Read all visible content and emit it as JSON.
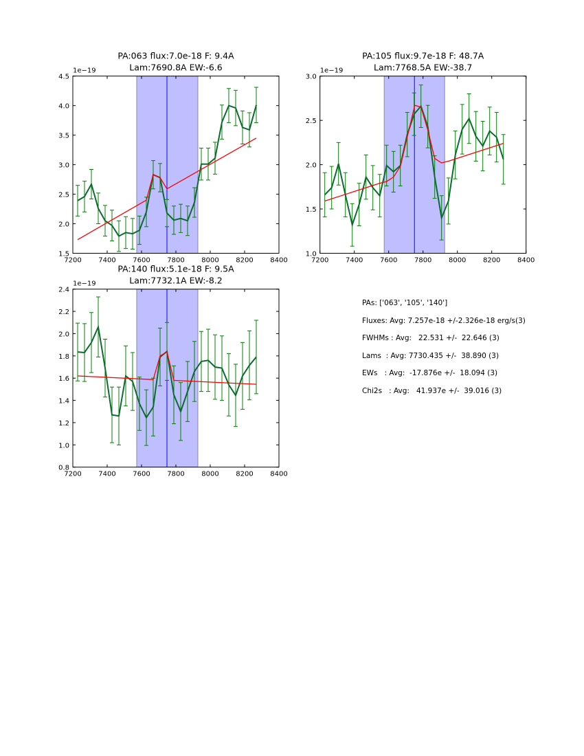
{
  "chart_data": [
    {
      "type": "line",
      "title": [
        "PA:063 flux:7.0e-18 F: 9.4A",
        "Lam:7690.8A EW:-6.6"
      ],
      "xlabel": "",
      "ylabel": "",
      "y_offset_label": "1e−19",
      "xlim": [
        7200,
        8400
      ],
      "ylim": [
        1.5,
        4.5
      ],
      "xticks": [
        7200,
        7400,
        7600,
        7800,
        8000,
        8200,
        8400
      ],
      "xtick_labels": [
        "7200",
        "7400",
        "7600",
        "7800",
        "8000",
        "8200",
        "8400"
      ],
      "yticks": [
        1.5,
        2.0,
        2.5,
        3.0,
        3.5,
        4.0,
        4.5
      ],
      "ytick_labels": [
        "1.5",
        "2.0",
        "2.5",
        "3.0",
        "3.5",
        "4.0",
        "4.5"
      ],
      "band": [
        7572,
        7928
      ],
      "center_line": 7748,
      "x": [
        7228,
        7268,
        7308,
        7348,
        7388,
        7428,
        7468,
        7508,
        7548,
        7588,
        7628,
        7668,
        7708,
        7748,
        7788,
        7828,
        7868,
        7908,
        7948,
        7988,
        8028,
        8068,
        8108,
        8148,
        8188,
        8228,
        8268
      ],
      "series": [
        {
          "name": "data",
          "values": [
            2.39,
            2.46,
            2.67,
            2.26,
            2.05,
            1.97,
            1.79,
            1.85,
            1.83,
            1.89,
            2.2,
            2.83,
            2.78,
            2.18,
            2.06,
            2.09,
            2.05,
            2.36,
            3.01,
            3.01,
            3.11,
            3.72,
            4.0,
            3.96,
            3.63,
            3.59,
            4.01
          ],
          "errors": [
            0.26,
            0.26,
            0.25,
            0.26,
            0.26,
            0.26,
            0.26,
            0.27,
            0.26,
            0.24,
            0.25,
            0.24,
            0.24,
            0.23,
            0.24,
            0.24,
            0.25,
            0.25,
            0.27,
            0.27,
            0.27,
            0.29,
            0.29,
            0.3,
            0.28,
            0.29,
            0.3
          ]
        },
        {
          "name": "fit",
          "x": [
            7228,
            7628,
            7668,
            7708,
            7748,
            8268
          ],
          "values": [
            1.73,
            2.4,
            2.83,
            2.78,
            2.59,
            3.45
          ]
        }
      ]
    },
    {
      "type": "line",
      "title": [
        "PA:105 flux:9.7e-18 F: 48.7A",
        "Lam:7768.5A EW:-38.7"
      ],
      "xlabel": "",
      "ylabel": "",
      "y_offset_label": "1e−19",
      "xlim": [
        7200,
        8400
      ],
      "ylim": [
        1.0,
        3.0
      ],
      "xticks": [
        7200,
        7400,
        7600,
        7800,
        8000,
        8200,
        8400
      ],
      "xtick_labels": [
        "7200",
        "7400",
        "7600",
        "7800",
        "8000",
        "8200",
        "8400"
      ],
      "yticks": [
        1.0,
        1.5,
        2.0,
        2.5,
        3.0
      ],
      "ytick_labels": [
        "1.0",
        "1.5",
        "2.0",
        "2.5",
        "3.0"
      ],
      "band": [
        7574,
        7926
      ],
      "center_line": 7750,
      "x": [
        7228,
        7268,
        7308,
        7348,
        7388,
        7428,
        7468,
        7508,
        7548,
        7588,
        7628,
        7668,
        7708,
        7748,
        7788,
        7828,
        7868,
        7908,
        7948,
        7988,
        8028,
        8068,
        8108,
        8148,
        8188,
        8228,
        8268
      ],
      "series": [
        {
          "name": "data",
          "values": [
            1.66,
            1.74,
            2.01,
            1.66,
            1.32,
            1.55,
            1.86,
            1.74,
            1.65,
            1.99,
            1.92,
            1.99,
            2.34,
            2.57,
            2.66,
            2.43,
            1.86,
            1.4,
            1.59,
            2.11,
            2.4,
            2.52,
            2.32,
            2.21,
            2.38,
            2.31,
            2.06
          ],
          "errors": [
            0.25,
            0.24,
            0.24,
            0.25,
            0.24,
            0.24,
            0.25,
            0.25,
            0.24,
            0.23,
            0.23,
            0.23,
            0.25,
            0.24,
            0.24,
            0.24,
            0.24,
            0.25,
            0.26,
            0.27,
            0.28,
            0.28,
            0.28,
            0.28,
            0.27,
            0.28,
            0.28
          ]
        },
        {
          "name": "fit",
          "x": [
            7228,
            7548,
            7588,
            7628,
            7668,
            7708,
            7752,
            7788,
            7828,
            7868,
            7908,
            7948,
            8268
          ],
          "values": [
            1.59,
            1.79,
            1.81,
            1.86,
            1.98,
            2.31,
            2.67,
            2.65,
            2.39,
            2.07,
            2.02,
            2.04,
            2.24
          ]
        }
      ]
    },
    {
      "type": "line",
      "title": [
        "PA:140 flux:5.1e-18 F: 9.5A",
        "Lam:7732.1A EW:-8.2"
      ],
      "xlabel": "",
      "ylabel": "",
      "y_offset_label": "1e−19",
      "xlim": [
        7200,
        8400
      ],
      "ylim": [
        0.8,
        2.4
      ],
      "xticks": [
        7200,
        7400,
        7600,
        7800,
        8000,
        8200,
        8400
      ],
      "xtick_labels": [
        "7200",
        "7400",
        "7600",
        "7800",
        "8000",
        "8200",
        "8400"
      ],
      "yticks": [
        0.8,
        1.0,
        1.2,
        1.4,
        1.6,
        1.8,
        2.0,
        2.2,
        2.4
      ],
      "ytick_labels": [
        "0.8",
        "1.0",
        "1.2",
        "1.4",
        "1.6",
        "1.8",
        "2.0",
        "2.2",
        "2.4"
      ],
      "band": [
        7572,
        7928
      ],
      "center_line": 7748,
      "x": [
        7228,
        7268,
        7308,
        7348,
        7388,
        7428,
        7468,
        7508,
        7548,
        7588,
        7628,
        7668,
        7708,
        7748,
        7788,
        7828,
        7868,
        7908,
        7948,
        7988,
        8028,
        8068,
        8108,
        8148,
        8188,
        8228,
        8268
      ],
      "series": [
        {
          "name": "data",
          "values": [
            1.835,
            1.83,
            1.92,
            2.06,
            1.69,
            1.27,
            1.26,
            1.62,
            1.57,
            1.37,
            1.245,
            1.34,
            1.79,
            1.84,
            1.45,
            1.3,
            1.48,
            1.66,
            1.75,
            1.76,
            1.7,
            1.69,
            1.54,
            1.445,
            1.62,
            1.715,
            1.79
          ],
          "errors": [
            0.26,
            0.26,
            0.27,
            0.27,
            0.26,
            0.25,
            0.26,
            0.27,
            0.26,
            0.24,
            0.25,
            0.26,
            0.26,
            0.26,
            0.26,
            0.26,
            0.27,
            0.27,
            0.27,
            0.28,
            0.29,
            0.29,
            0.28,
            0.28,
            0.3,
            0.31,
            0.33
          ]
        },
        {
          "name": "fit",
          "x": [
            7228,
            7668,
            7708,
            7748,
            7788,
            8268
          ],
          "values": [
            1.62,
            1.587,
            1.8,
            1.835,
            1.58,
            1.545
          ]
        }
      ]
    }
  ],
  "stats": {
    "lines": [
      "PAs: ['063', '105', '140']",
      "Fluxes: Avg: 7.257e-18 +/-2.326e-18 erg/s(3)",
      "FWHMs : Avg:   22.531 +/-  22.646 (3)",
      "Lams  : Avg: 7730.435 +/-  38.890 (3)",
      "EWs   : Avg:  -17.876e +/-  18.094 (3)",
      "Chi2s   : Avg:   41.937e +/-  39.016 (3)"
    ]
  },
  "colors": {
    "data_line": "#0b6b2e",
    "error_bars": "#008000",
    "fit_line": "#ff0000",
    "band": "#bfbfff",
    "band_edge": "#8888aa",
    "center_line": "#0000ff"
  }
}
